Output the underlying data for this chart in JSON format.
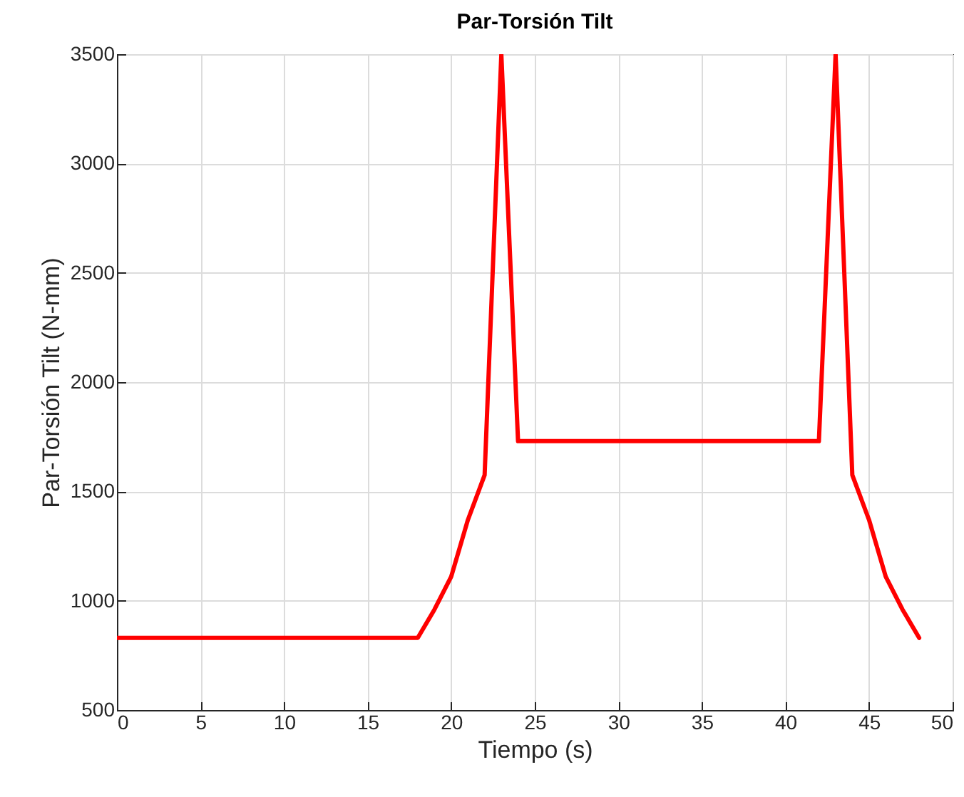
{
  "chart_data": {
    "type": "line",
    "title": "Par-Torsión Tilt",
    "xlabel": "Tiempo (s)",
    "ylabel": "Par-Torsión Tilt (N-mm)",
    "x": [
      0,
      18,
      19,
      20,
      21,
      22,
      23,
      24,
      42,
      43,
      44,
      45,
      46,
      47,
      48
    ],
    "series": [
      {
        "color": "#ff0000",
        "values": [
          830,
          830,
          960,
          1110,
          1370,
          1575,
          3500,
          1730,
          1730,
          3500,
          1575,
          1370,
          1110,
          960,
          830
        ]
      }
    ],
    "xlim": [
      0,
      50
    ],
    "xticks": [
      0,
      5,
      10,
      15,
      20,
      25,
      30,
      35,
      40,
      45,
      50
    ],
    "ylim": [
      500,
      3500
    ],
    "yticks": [
      500,
      1000,
      1500,
      2000,
      2500,
      3000,
      3500
    ],
    "grid": true,
    "legend": false,
    "marker": "none",
    "line_style": "solid"
  }
}
